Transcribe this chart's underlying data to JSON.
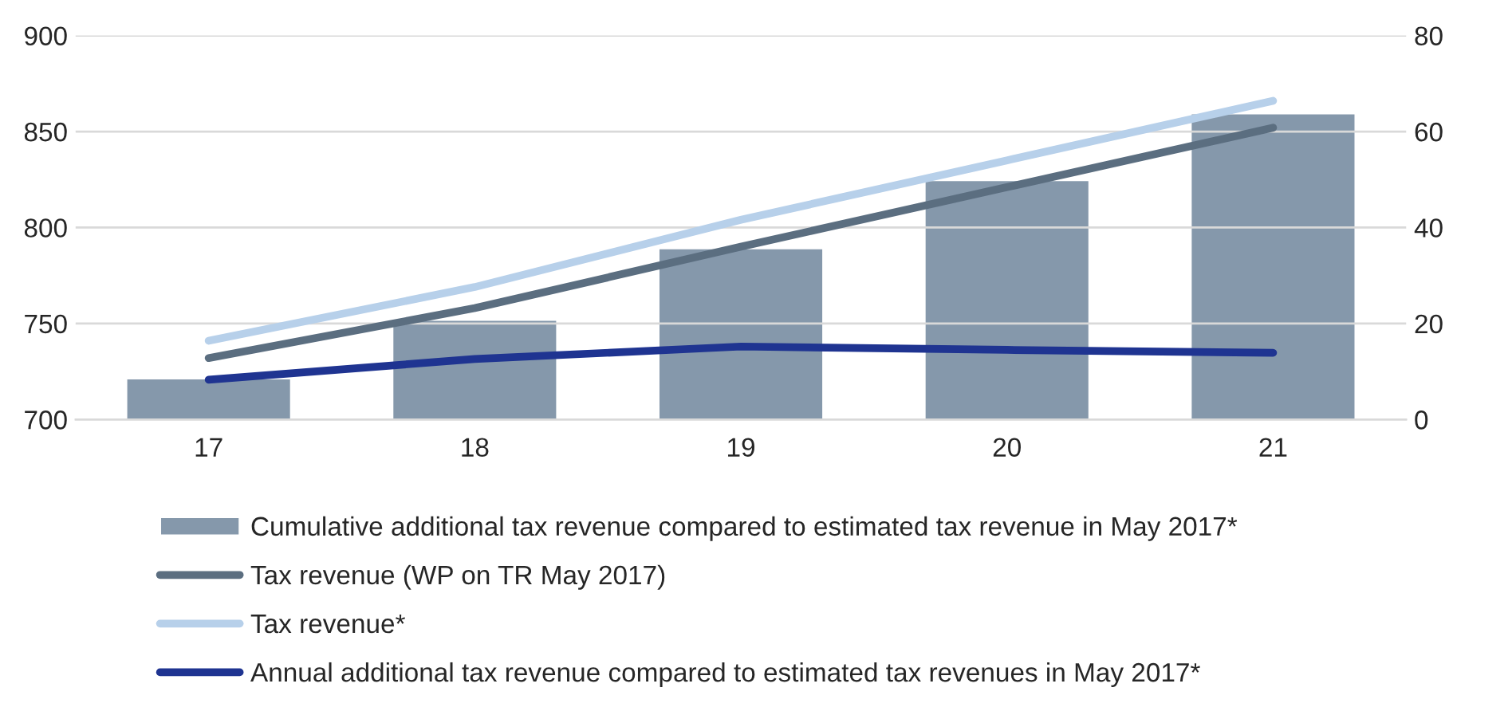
{
  "chart_data": {
    "type": "bar",
    "categories": [
      "17",
      "18",
      "19",
      "20",
      "21"
    ],
    "series": [
      {
        "name": "Cumulative additional tax revenue compared to estimated tax revenue in May 2017*",
        "axis": "y2",
        "color": "#8598ab",
        "values": [
          8.6,
          20.8,
          35.7,
          49.9,
          63.8
        ]
      },
      {
        "name": "Tax revenue (WP on TR May 2017)",
        "type": "line",
        "color": "#5b6e80",
        "values": [
          732,
          758,
          790,
          821,
          852
        ]
      },
      {
        "name": "Tax revenue*",
        "type": "line",
        "color": "#b7d0ea",
        "values": [
          741,
          769,
          804,
          835,
          866
        ]
      },
      {
        "name": "Annual additional tax revenue compared to estimated tax revenues in May 2017*",
        "type": "line",
        "axis": "y2",
        "color": "#1f3491",
        "values": [
          8.3,
          12.6,
          15.2,
          14.5,
          13.9
        ]
      }
    ],
    "ylim": [
      700,
      900
    ],
    "yticks": [
      700,
      750,
      800,
      850,
      900
    ],
    "y2lim": [
      0,
      80
    ],
    "y2ticks": [
      0,
      20,
      40,
      60,
      80
    ],
    "grid": "y",
    "legend": "bottom",
    "marker": "none",
    "line_style": "solid"
  }
}
